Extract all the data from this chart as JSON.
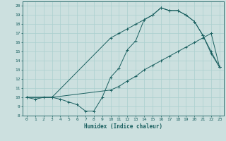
{
  "xlabel": "Humidex (Indice chaleur)",
  "xlim": [
    -0.5,
    23.5
  ],
  "ylim": [
    8,
    20.5
  ],
  "yticks": [
    8,
    9,
    10,
    11,
    12,
    13,
    14,
    15,
    16,
    17,
    18,
    19,
    20
  ],
  "xticks": [
    0,
    1,
    2,
    3,
    4,
    5,
    6,
    7,
    8,
    9,
    10,
    11,
    12,
    13,
    14,
    15,
    16,
    17,
    18,
    19,
    20,
    21,
    22,
    23
  ],
  "bg_color": "#cce0df",
  "grid_color": "#aacfcf",
  "line_color": "#1a6060",
  "line1_x": [
    0,
    1,
    2,
    3,
    4,
    5,
    6,
    7,
    8,
    9,
    10,
    11,
    12,
    13,
    14,
    15,
    16,
    17,
    18,
    19,
    20,
    21,
    22,
    23
  ],
  "line1_y": [
    10,
    9.8,
    10,
    10,
    9.8,
    9.5,
    9.2,
    8.5,
    8.5,
    10,
    12.2,
    13.2,
    15.2,
    16.2,
    18.5,
    19.0,
    19.8,
    19.5,
    19.5,
    19.0,
    18.3,
    16.8,
    14.8,
    13.3
  ],
  "line2_x": [
    0,
    3,
    10,
    11,
    12,
    13,
    14,
    15,
    16,
    17,
    18,
    19,
    20,
    21,
    22,
    23
  ],
  "line2_y": [
    10,
    10,
    10.8,
    11.2,
    11.8,
    12.3,
    13.0,
    13.5,
    14.0,
    14.5,
    15.0,
    15.5,
    16.0,
    16.5,
    17.0,
    13.3
  ],
  "line3_x": [
    0,
    3,
    10,
    11,
    12,
    13,
    14,
    15,
    16,
    17,
    18,
    19,
    20,
    21,
    22,
    23
  ],
  "line3_y": [
    10,
    10,
    16.5,
    17.0,
    17.5,
    18.0,
    18.5,
    19.0,
    19.8,
    19.5,
    19.5,
    19.0,
    18.3,
    16.8,
    15.0,
    13.3
  ]
}
